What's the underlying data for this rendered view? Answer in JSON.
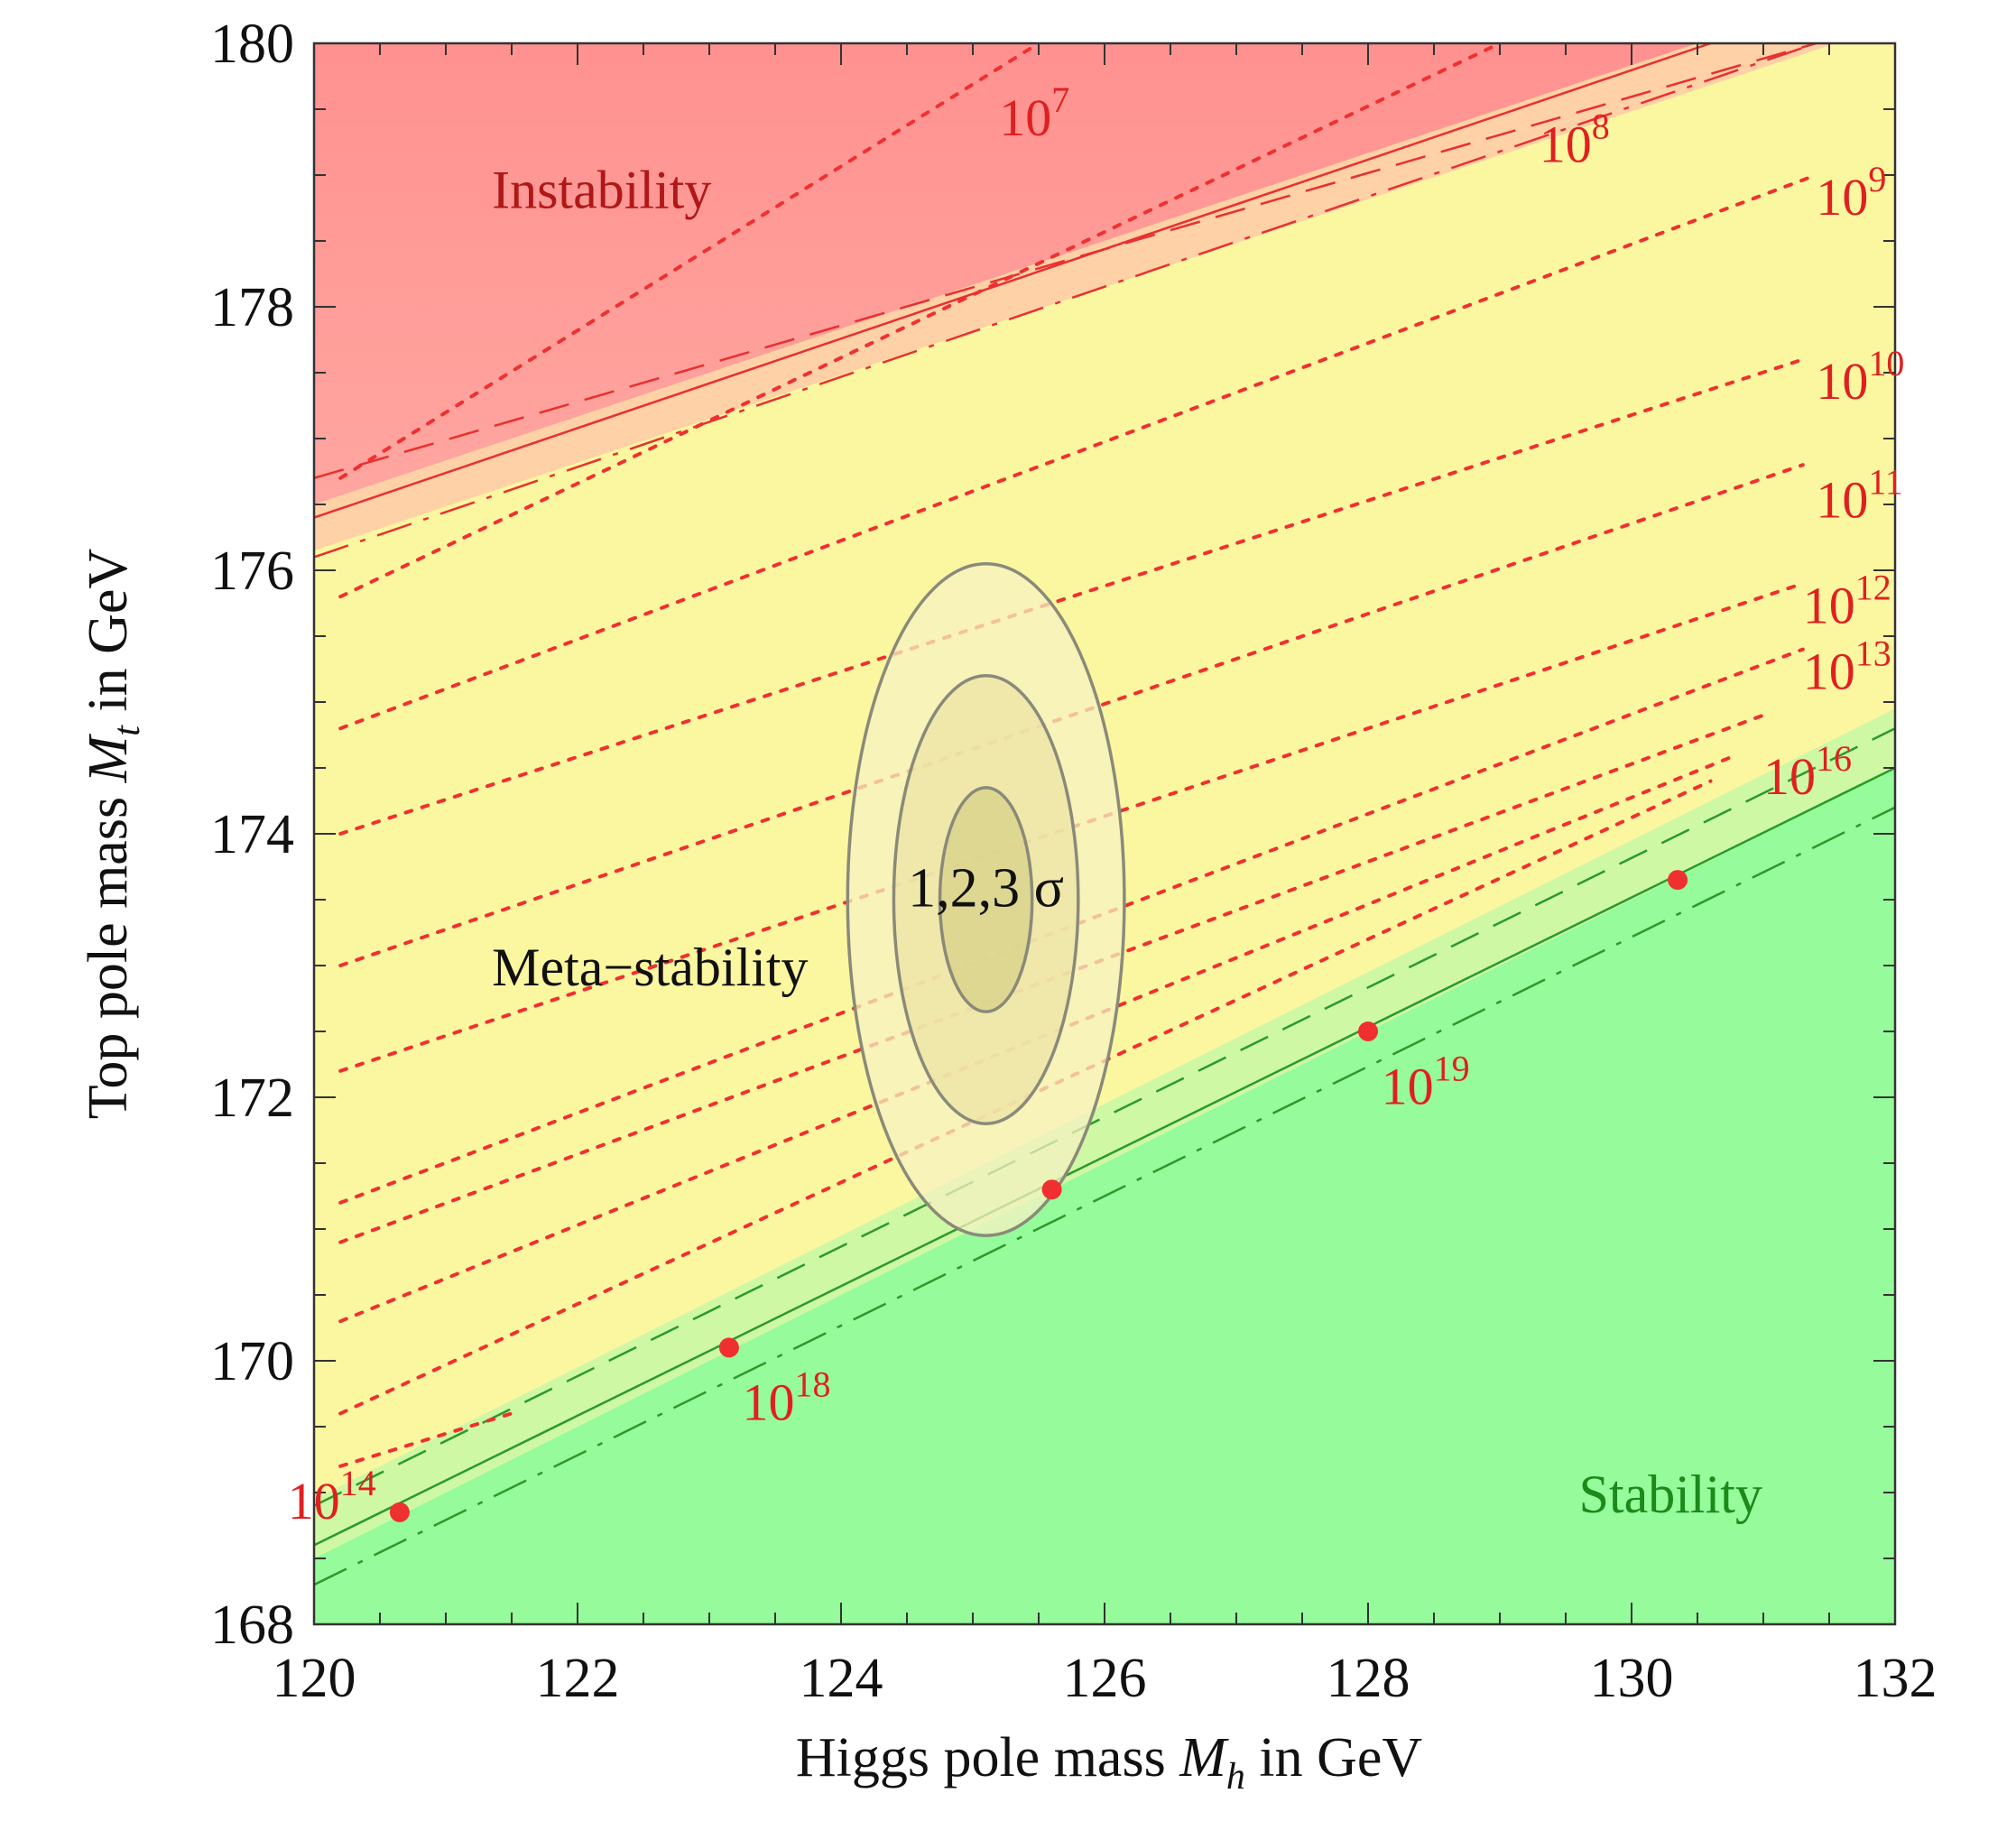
{
  "chart_data": {
    "type": "contour",
    "xlabel": "Higgs pole mass",
    "xlabel_symbol": "M",
    "xlabel_sub": "h",
    "xlabel_unit": " in GeV",
    "ylabel": "Top pole mass",
    "ylabel_symbol": "M",
    "ylabel_sub": "t",
    "ylabel_unit": " in GeV",
    "xlim": [
      120,
      132
    ],
    "ylim": [
      168,
      180
    ],
    "xticks": [
      "120",
      "122",
      "124",
      "126",
      "128",
      "130",
      "132"
    ],
    "yticks": [
      "168",
      "170",
      "172",
      "174",
      "176",
      "178",
      "180"
    ],
    "xtick_values": [
      120,
      122,
      124,
      126,
      128,
      130,
      132
    ],
    "ytick_values": [
      168,
      170,
      172,
      174,
      176,
      178,
      180
    ],
    "regions": {
      "instability": {
        "label": "Instability",
        "color": "#ff8c8c",
        "text_color": "#b01818"
      },
      "metastability": {
        "label": "Meta−stability",
        "color": "#fbf7a0",
        "text_color": "#111111"
      },
      "stability": {
        "label": "Stability",
        "color": "#96fb9a",
        "text_color": "#1a8a1a"
      }
    },
    "boundaries": {
      "instability": [
        [
          120,
          176.5
        ],
        [
          130.5,
          180
        ]
      ],
      "stability": [
        [
          120,
          168.5
        ],
        [
          132,
          174.5
        ]
      ]
    },
    "lifetime_lines": [
      {
        "label_base": "10",
        "label_exp": "7",
        "points": [
          [
            120.2,
            176.7
          ],
          [
            125.5,
            180
          ]
        ],
        "label_at": [
          125.2,
          179.3
        ]
      },
      {
        "label_base": "10",
        "label_exp": "8",
        "points": [
          [
            120.2,
            175.8
          ],
          [
            129.0,
            180
          ]
        ],
        "label_at": [
          129.3,
          179.1
        ]
      },
      {
        "label_base": "10",
        "label_exp": "9",
        "points": [
          [
            120.2,
            174.8
          ],
          [
            131.4,
            179.0
          ]
        ],
        "label_at": [
          131.4,
          178.7
        ]
      },
      {
        "label_base": "10",
        "label_exp": "10",
        "points": [
          [
            120.2,
            174.0
          ],
          [
            131.3,
            177.6
          ]
        ],
        "label_at": [
          131.4,
          177.3
        ]
      },
      {
        "label_base": "10",
        "label_exp": "11",
        "points": [
          [
            120.2,
            173.0
          ],
          [
            131.3,
            176.8
          ]
        ],
        "label_at": [
          131.4,
          176.4
        ]
      },
      {
        "label_base": "10",
        "label_exp": "12",
        "points": [
          [
            120.2,
            172.2
          ],
          [
            131.3,
            175.9
          ]
        ],
        "label_at": [
          131.3,
          175.6
        ]
      },
      {
        "label_base": "10",
        "label_exp": "13",
        "points": [
          [
            120.2,
            171.2
          ],
          [
            131.3,
            175.4
          ]
        ],
        "label_at": [
          131.3,
          175.1
        ]
      },
      {
        "label": "10",
        "points": [
          [
            120.2,
            170.9
          ],
          [
            131.0,
            174.9
          ]
        ]
      },
      {
        "label": "10",
        "points": [
          [
            120.2,
            170.3
          ],
          [
            130.8,
            174.6
          ]
        ]
      },
      {
        "label_base": "10",
        "label_exp": "16",
        "points": [
          [
            120.2,
            169.6
          ],
          [
            130.6,
            174.4
          ]
        ],
        "label_at": [
          131.0,
          174.3
        ]
      },
      {
        "label_base": "10",
        "label_exp": "14",
        "points": [
          [
            120.2,
            169.2
          ],
          [
            121.5,
            169.6
          ]
        ],
        "label_at": [
          119.8,
          168.8
        ]
      }
    ],
    "instability_offset_lines": [
      {
        "style": "dashed",
        "points": [
          [
            120.0,
            176.7
          ],
          [
            131.4,
            180
          ]
        ]
      },
      {
        "style": "solid",
        "points": [
          [
            120.0,
            176.4
          ],
          [
            130.6,
            180
          ]
        ]
      },
      {
        "style": "dashdot",
        "points": [
          [
            120.0,
            176.1
          ],
          [
            131.4,
            180
          ]
        ]
      }
    ],
    "stability_offset_lines": [
      {
        "style": "dashed",
        "points": [
          [
            120.0,
            168.9
          ],
          [
            132,
            174.8
          ]
        ]
      },
      {
        "style": "solid",
        "points": [
          [
            120.0,
            168.6
          ],
          [
            132,
            174.5
          ]
        ]
      },
      {
        "style": "dashdot",
        "points": [
          [
            120.0,
            168.3
          ],
          [
            132,
            174.2
          ]
        ]
      }
    ],
    "planck_points": [
      {
        "x": 120.65,
        "y": 168.85
      },
      {
        "x": 123.15,
        "y": 170.1,
        "label_base": "10",
        "label_exp": "18"
      },
      {
        "x": 125.6,
        "y": 171.3
      },
      {
        "x": 128.0,
        "y": 172.5,
        "label_base": "10",
        "label_exp": "19"
      },
      {
        "x": 130.35,
        "y": 173.65
      }
    ],
    "ellipses": {
      "center": [
        125.1,
        173.5
      ],
      "sigma_x": 0.35,
      "sigma_y": 0.85,
      "levels": [
        1,
        2,
        3
      ],
      "label": "1,2,3 σ"
    }
  }
}
